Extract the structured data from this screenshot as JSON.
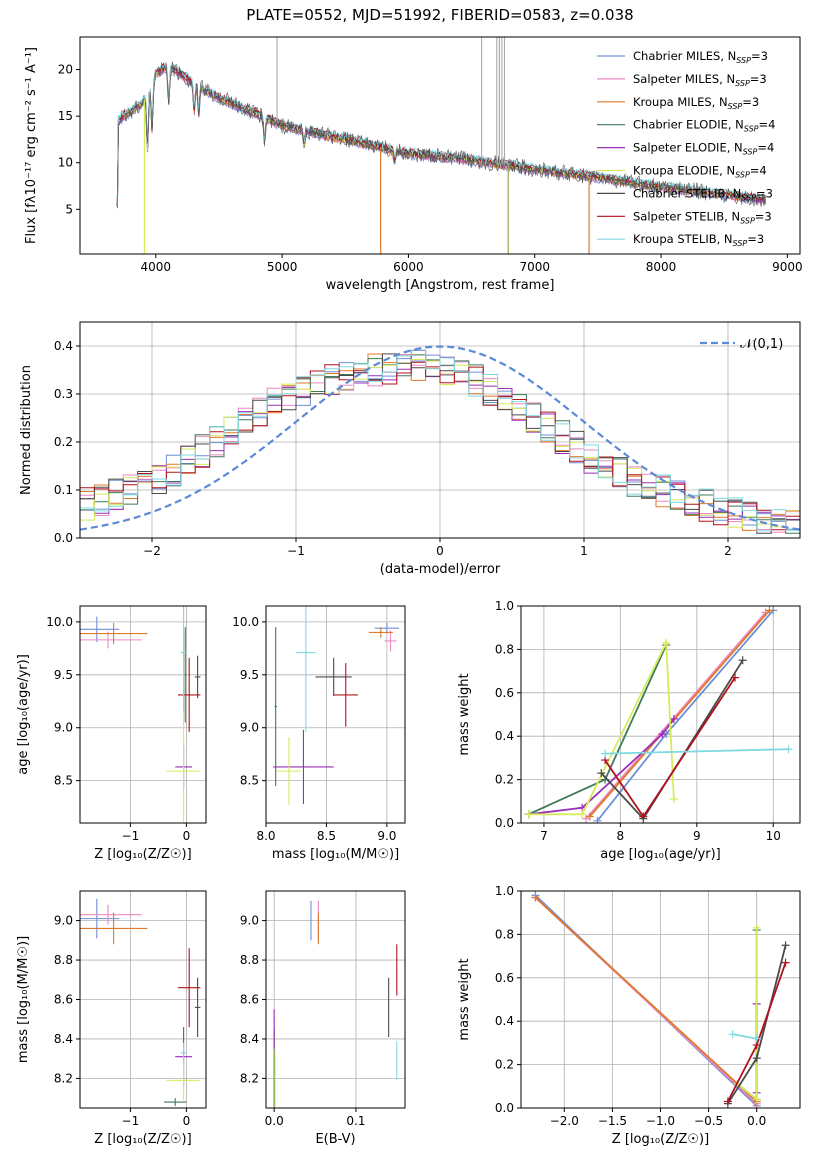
{
  "figure_title": "PLATE=0552, MJD=51992, FIBERID=0583, z=0.038",
  "series_colors": {
    "Chabrier MILES": "#6f8fd6",
    "Salpeter MILES": "#ee88c4",
    "Kroupa MILES": "#e07a2a",
    "Chabrier ELODIE": "#3f7a5a",
    "Salpeter ELODIE": "#9a2fb8",
    "Kroupa ELODIE": "#d7ea5a",
    "Chabrier STELIB": "#4a4a4a",
    "Salpeter STELIB": "#b1121c",
    "Kroupa STELIB": "#7fd9e0"
  },
  "chart_data": [
    {
      "id": "spectrum",
      "type": "line",
      "xlabel": "wavelength [Angstrom, rest frame]",
      "ylabel": "Flux [fλ10⁻¹⁷ erg cm⁻² s⁻¹ A⁻¹]",
      "xlim": [
        3400,
        9100
      ],
      "ylim": [
        0.2,
        23.5
      ],
      "xticks": [
        4000,
        5000,
        6000,
        7000,
        8000,
        9000
      ],
      "yticks": [
        5,
        10,
        15,
        20
      ],
      "grid": false,
      "legend_position": "top-right",
      "legend": [
        {
          "label": "Chabrier MILES, N",
          "sub": "SSP",
          "suffix": "=3"
        },
        {
          "label": "Salpeter MILES, N",
          "sub": "SSP",
          "suffix": "=3"
        },
        {
          "label": "Kroupa MILES, N",
          "sub": "SSP",
          "suffix": "=3"
        },
        {
          "label": "Chabrier ELODIE, N",
          "sub": "SSP",
          "suffix": "=4"
        },
        {
          "label": "Salpeter ELODIE, N",
          "sub": "SSP",
          "suffix": "=4"
        },
        {
          "label": "Kroupa ELODIE, N",
          "sub": "SSP",
          "suffix": "=4"
        },
        {
          "label": "Chabrier STELIB, N",
          "sub": "SSP",
          "suffix": "=3"
        },
        {
          "label": "Salpeter STELIB, N",
          "sub": "SSP",
          "suffix": "=3"
        },
        {
          "label": "Kroupa STELIB, N",
          "sub": "SSP",
          "suffix": "=3"
        }
      ],
      "data_envelope": {
        "x": [
          3700,
          3900,
          4000,
          4100,
          4300,
          4500,
          5000,
          5500,
          6000,
          6500,
          7000,
          7500,
          8000,
          8500,
          8830
        ],
        "y": [
          14.5,
          16.5,
          19.5,
          20.5,
          18.5,
          17.0,
          14.0,
          12.5,
          11.0,
          10.3,
          9.3,
          8.4,
          7.4,
          6.6,
          6.0
        ]
      },
      "data_spikes_x": [
        4960,
        6580,
        6700,
        6720,
        6740,
        6760
      ]
    },
    {
      "id": "residuals",
      "type": "area",
      "xlabel": "(data-model)/error",
      "ylabel": "Normed distribution",
      "xlim": [
        -2.5,
        2.5
      ],
      "ylim": [
        0,
        0.45
      ],
      "xticks": [
        -2,
        -1,
        0,
        1,
        2
      ],
      "yticks": [
        0.0,
        0.1,
        0.2,
        0.3,
        0.4
      ],
      "grid": true,
      "legend_position": "top-right",
      "legend": [
        {
          "label": "𝒩(0,1)"
        }
      ],
      "gaussian": {
        "mean": 0,
        "sigma": 1,
        "peak": 0.399
      },
      "bin_edges_range": [
        -2.5,
        2.5
      ],
      "bins": 50,
      "histogram_shape": [
        0.07,
        0.08,
        0.09,
        0.1,
        0.11,
        0.12,
        0.14,
        0.16,
        0.18,
        0.2,
        0.22,
        0.24,
        0.26,
        0.28,
        0.3,
        0.31,
        0.32,
        0.33,
        0.34,
        0.35,
        0.35,
        0.35,
        0.35,
        0.36,
        0.36,
        0.35,
        0.34,
        0.33,
        0.31,
        0.29,
        0.27,
        0.25,
        0.23,
        0.21,
        0.19,
        0.17,
        0.16,
        0.14,
        0.12,
        0.11,
        0.1,
        0.09,
        0.08,
        0.07,
        0.06,
        0.05,
        0.05,
        0.04,
        0.03,
        0.03
      ]
    },
    {
      "id": "age-vs-metallicity",
      "type": "scatter",
      "xlabel": "Z [log₁₀(Z/Z☉)]",
      "ylabel": "age  [log₁₀(age/yr)]",
      "xlim": [
        -1.9,
        0.35
      ],
      "ylim": [
        8.1,
        10.15
      ],
      "xticks": [
        -1,
        0
      ],
      "yticks": [
        8.5,
        9.0,
        9.5,
        10.0
      ],
      "grid": true,
      "points": [
        {
          "series": "Chabrier MILES",
          "x": -1.6,
          "y": 9.93,
          "xerr": 0.4,
          "yerr": 0.12
        },
        {
          "series": "Salpeter MILES",
          "x": -1.4,
          "y": 9.83,
          "xerr": 0.6,
          "yerr": 0.08
        },
        {
          "series": "Kroupa MILES",
          "x": -1.3,
          "y": 9.89,
          "xerr": 0.6,
          "yerr": 0.1
        },
        {
          "series": "Chabrier ELODIE",
          "x": -0.02,
          "y": 9.5,
          "xerr": 0.02,
          "yerr": 0.45
        },
        {
          "series": "Salpeter ELODIE",
          "x": -0.05,
          "y": 8.63,
          "xerr": 0.15,
          "yerr": 0.2
        },
        {
          "series": "Kroupa ELODIE",
          "x": -0.05,
          "y": 8.59,
          "xerr": 0.3,
          "yerr": 1.3
        },
        {
          "series": "Chabrier STELIB",
          "x": 0.2,
          "y": 9.48,
          "xerr": 0.05,
          "yerr": 0.2
        },
        {
          "series": "Salpeter STELIB",
          "x": 0.05,
          "y": 9.31,
          "xerr": 0.2,
          "yerr": 0.35
        },
        {
          "series": "Kroupa STELIB",
          "x": -0.05,
          "y": 9.71,
          "xerr": 0.05,
          "yerr": 0.55
        }
      ]
    },
    {
      "id": "age-vs-mass",
      "type": "scatter",
      "xlabel": "mass [log₁₀(M/M☉)]",
      "ylabel": "",
      "xlim": [
        8.0,
        9.15
      ],
      "ylim": [
        8.1,
        10.15
      ],
      "xticks": [
        8.0,
        8.5,
        9.0
      ],
      "yticks": [
        8.5,
        9.0,
        9.5,
        10.0
      ],
      "grid": true,
      "points": [
        {
          "series": "Chabrier MILES",
          "x": 9.0,
          "y": 9.94,
          "xerr": 0.1,
          "yerr": 0.05
        },
        {
          "series": "Salpeter MILES",
          "x": 9.03,
          "y": 9.82,
          "xerr": 0.05,
          "yerr": 0.1
        },
        {
          "series": "Kroupa MILES",
          "x": 8.95,
          "y": 9.9,
          "xerr": 0.1,
          "yerr": 0.05
        },
        {
          "series": "Chabrier ELODIE",
          "x": 8.08,
          "y": 9.2,
          "xerr": 0.01,
          "yerr": 0.75
        },
        {
          "series": "Salpeter ELODIE",
          "x": 8.31,
          "y": 8.63,
          "xerr": 0.25,
          "yerr": 0.35
        },
        {
          "series": "Kroupa ELODIE",
          "x": 8.19,
          "y": 8.59,
          "xerr": 0.1,
          "yerr": 0.32
        },
        {
          "series": "Chabrier STELIB",
          "x": 8.56,
          "y": 9.48,
          "xerr": 0.15,
          "yerr": 0.18
        },
        {
          "series": "Salpeter STELIB",
          "x": 8.66,
          "y": 9.31,
          "xerr": 0.1,
          "yerr": 0.3
        },
        {
          "series": "Kroupa STELIB",
          "x": 8.33,
          "y": 9.71,
          "xerr": 0.08,
          "yerr": 0.75
        }
      ]
    },
    {
      "id": "weight-vs-age",
      "type": "line",
      "xlabel": "age  [log₁₀(age/yr)]",
      "ylabel": "mass weight",
      "xlim": [
        6.7,
        10.35
      ],
      "ylim": [
        0,
        1
      ],
      "xticks": [
        7,
        8,
        9,
        10
      ],
      "yticks": [
        0.0,
        0.2,
        0.4,
        0.6,
        0.8,
        1.0
      ],
      "grid": true,
      "series": [
        {
          "name": "Chabrier MILES",
          "x": [
            7.7,
            8.6,
            10.0
          ],
          "y": [
            0.01,
            0.41,
            0.98
          ]
        },
        {
          "name": "Salpeter MILES",
          "x": [
            7.55,
            9.9
          ],
          "y": [
            0.02,
            0.97
          ]
        },
        {
          "name": "Kroupa MILES",
          "x": [
            7.6,
            9.95
          ],
          "y": [
            0.03,
            0.98
          ]
        },
        {
          "name": "Chabrier ELODIE",
          "x": [
            6.8,
            7.8,
            8.6
          ],
          "y": [
            0.04,
            0.2,
            0.82
          ]
        },
        {
          "name": "Salpeter ELODIE",
          "x": [
            6.8,
            7.5,
            8.55,
            8.7
          ],
          "y": [
            0.04,
            0.07,
            0.41,
            0.48
          ]
        },
        {
          "name": "Kroupa ELODIE",
          "x": [
            6.8,
            7.5,
            8.6,
            8.7
          ],
          "y": [
            0.04,
            0.04,
            0.83,
            0.11
          ]
        },
        {
          "name": "Chabrier STELIB",
          "x": [
            7.75,
            8.3,
            9.6
          ],
          "y": [
            0.23,
            0.02,
            0.75
          ]
        },
        {
          "name": "Salpeter STELIB",
          "x": [
            7.8,
            8.3,
            9.5
          ],
          "y": [
            0.29,
            0.03,
            0.67
          ]
        },
        {
          "name": "Kroupa STELIB",
          "x": [
            7.8,
            10.2
          ],
          "y": [
            0.32,
            0.34
          ]
        }
      ]
    },
    {
      "id": "mass-vs-metallicity",
      "type": "scatter",
      "xlabel": "Z [log₁₀(Z/Z☉)]",
      "ylabel": "mass [log₁₀(M/M☉)]",
      "xlim": [
        -1.9,
        0.35
      ],
      "ylim": [
        8.05,
        9.15
      ],
      "xticks": [
        -1,
        0
      ],
      "yticks": [
        8.2,
        8.4,
        8.6,
        8.8,
        9.0
      ],
      "grid": true,
      "points": [
        {
          "series": "Chabrier MILES",
          "x": -1.6,
          "y": 9.01,
          "xerr": 0.4,
          "yerr": 0.1
        },
        {
          "series": "Salpeter MILES",
          "x": -1.4,
          "y": 9.03,
          "xerr": 0.6,
          "yerr": 0.05
        },
        {
          "series": "Kroupa MILES",
          "x": -1.3,
          "y": 8.96,
          "xerr": 0.6,
          "yerr": 0.08
        },
        {
          "series": "Chabrier ELODIE",
          "x": -0.2,
          "y": 8.08,
          "xerr": 0.2,
          "yerr": 0.02
        },
        {
          "series": "Salpeter ELODIE",
          "x": -0.05,
          "y": 8.31,
          "xerr": 0.15,
          "yerr": 0.15
        },
        {
          "series": "Kroupa ELODIE",
          "x": -0.05,
          "y": 8.19,
          "xerr": 0.3,
          "yerr": 0.1
        },
        {
          "series": "Chabrier STELIB",
          "x": 0.2,
          "y": 8.56,
          "xerr": 0.05,
          "yerr": 0.15
        },
        {
          "series": "Salpeter STELIB",
          "x": 0.05,
          "y": 8.66,
          "xerr": 0.2,
          "yerr": 0.2
        },
        {
          "series": "Kroupa STELIB",
          "x": -0.05,
          "y": 8.33,
          "xerr": 0.05,
          "yerr": 0.05
        }
      ]
    },
    {
      "id": "mass-vs-extinction",
      "type": "scatter",
      "xlabel": "E(B-V)",
      "ylabel": "",
      "xlim": [
        -0.01,
        0.16
      ],
      "ylim": [
        8.05,
        9.15
      ],
      "xticks": [
        0.0,
        0.1
      ],
      "yticks": [
        8.2,
        8.4,
        8.6,
        8.8,
        9.0
      ],
      "grid": true,
      "points": [
        {
          "series": "Chabrier MILES",
          "x": 0.045,
          "y": 9.0,
          "xerr": 0,
          "yerr": 0.1
        },
        {
          "series": "Salpeter MILES",
          "x": 0.054,
          "y": 9.0,
          "xerr": 0,
          "yerr": 0.1
        },
        {
          "series": "Kroupa MILES",
          "x": 0.054,
          "y": 8.96,
          "xerr": 0,
          "yerr": 0.08
        },
        {
          "series": "Chabrier ELODIE",
          "x": 0.0,
          "y": 8.25,
          "xerr": 0,
          "yerr": 0.2
        },
        {
          "series": "Salpeter ELODIE",
          "x": 0.0,
          "y": 8.45,
          "xerr": 0,
          "yerr": 0.1
        },
        {
          "series": "Kroupa ELODIE",
          "x": 0.001,
          "y": 8.2,
          "xerr": 0,
          "yerr": 0.15
        },
        {
          "series": "Chabrier STELIB",
          "x": 0.14,
          "y": 8.56,
          "xerr": 0,
          "yerr": 0.15
        },
        {
          "series": "Salpeter STELIB",
          "x": 0.15,
          "y": 8.75,
          "xerr": 0,
          "yerr": 0.13
        },
        {
          "series": "Kroupa STELIB",
          "x": 0.15,
          "y": 8.29,
          "xerr": 0,
          "yerr": 0.1
        }
      ]
    },
    {
      "id": "weight-vs-metallicity",
      "type": "line",
      "xlabel": "Z [log₁₀(Z/Z☉)]",
      "ylabel": "mass weight",
      "xlim": [
        -2.45,
        0.45
      ],
      "ylim": [
        0,
        1
      ],
      "xticks": [
        -2.0,
        -1.5,
        -1.0,
        -0.5,
        0.0
      ],
      "yticks": [
        0.0,
        0.2,
        0.4,
        0.6,
        0.8,
        1.0
      ],
      "grid": true,
      "series": [
        {
          "name": "Chabrier MILES",
          "x": [
            -2.3,
            0.0
          ],
          "y": [
            0.98,
            0.01
          ]
        },
        {
          "name": "Salpeter MILES",
          "x": [
            -2.3,
            0.0
          ],
          "y": [
            0.97,
            0.02
          ]
        },
        {
          "name": "Kroupa MILES",
          "x": [
            -2.3,
            0.0
          ],
          "y": [
            0.97,
            0.03
          ]
        },
        {
          "name": "Chabrier ELODIE",
          "x": [
            -0.2,
            0.0,
            0.0
          ],
          "y": [
            0.11,
            0.04,
            0.82
          ]
        },
        {
          "name": "Salpeter ELODIE",
          "x": [
            0.0,
            0.0
          ],
          "y": [
            0.07,
            0.48
          ]
        },
        {
          "name": "Kroupa ELODIE",
          "x": [
            -0.2,
            0.0,
            0.0
          ],
          "y": [
            0.11,
            0.04,
            0.83
          ]
        },
        {
          "name": "Chabrier STELIB",
          "x": [
            -0.3,
            0.0,
            0.3
          ],
          "y": [
            0.02,
            0.23,
            0.75
          ]
        },
        {
          "name": "Salpeter STELIB",
          "x": [
            -0.3,
            0.0,
            0.3
          ],
          "y": [
            0.03,
            0.29,
            0.67
          ]
        },
        {
          "name": "Kroupa STELIB",
          "x": [
            -0.25,
            0.0
          ],
          "y": [
            0.34,
            0.32
          ]
        }
      ]
    }
  ]
}
